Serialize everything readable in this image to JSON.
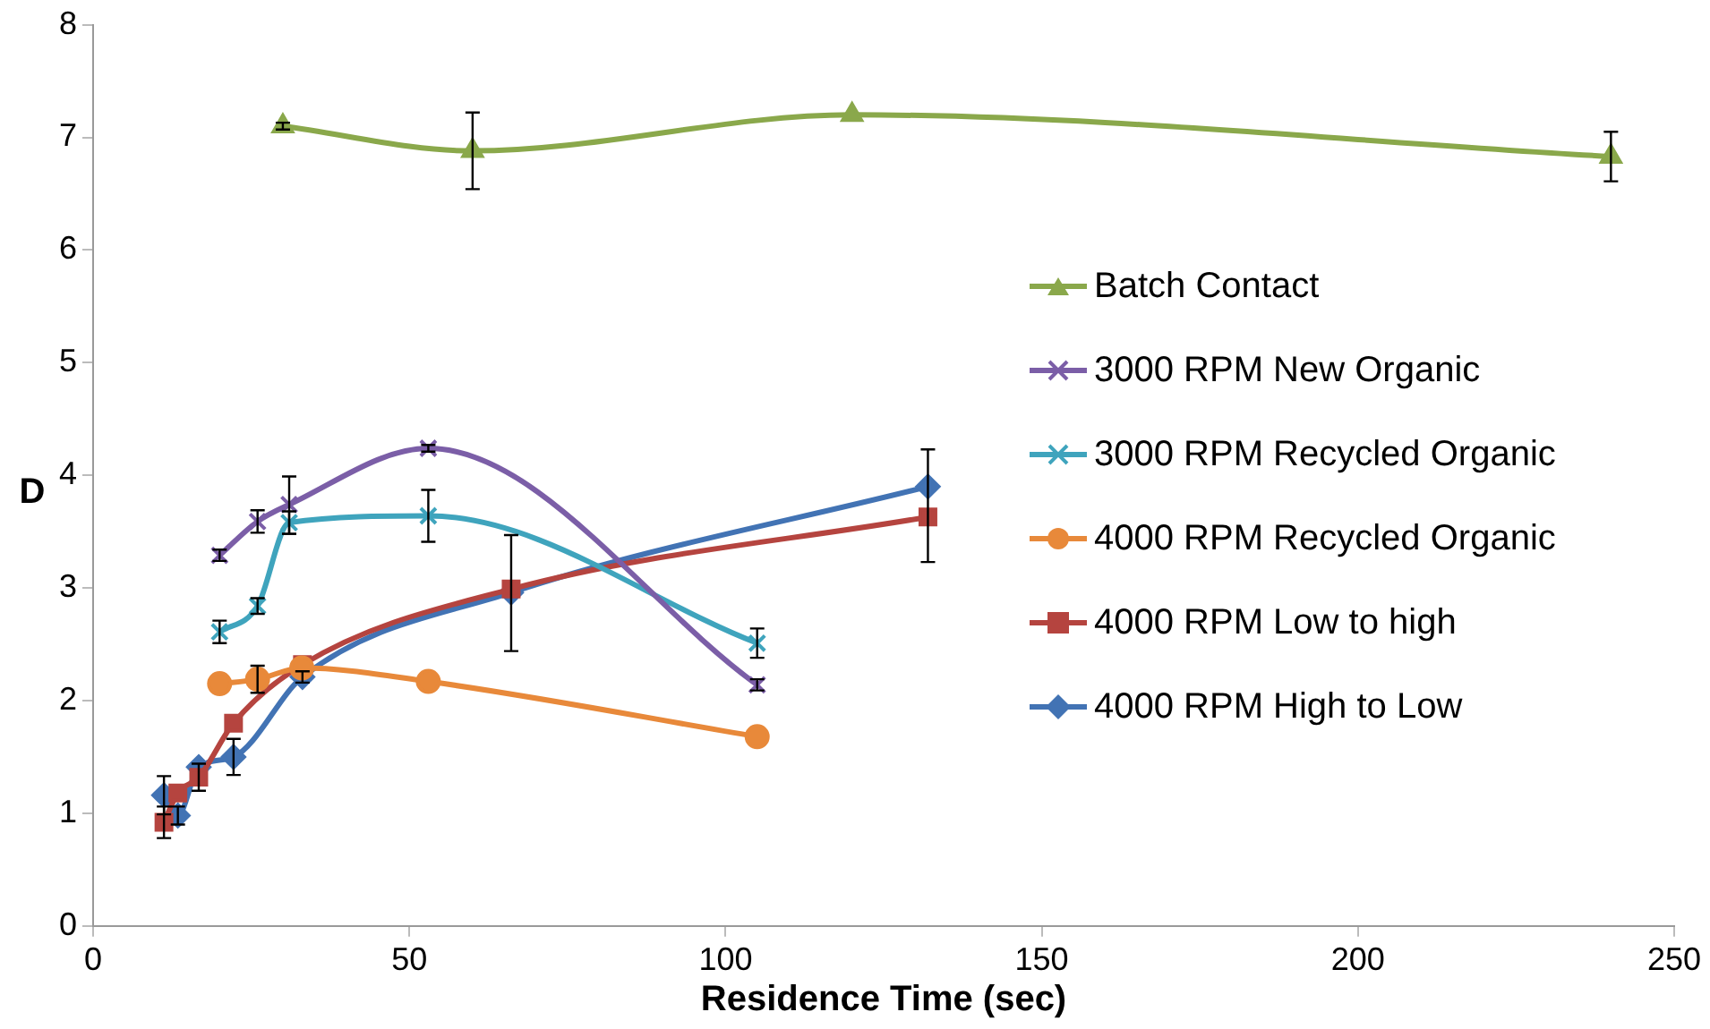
{
  "chart_data": {
    "type": "line",
    "xlabel": "Residence Time (sec)",
    "ylabel": "D",
    "xlim": [
      0,
      250
    ],
    "xticks": [
      0,
      50,
      100,
      150,
      200,
      250
    ],
    "ylim": [
      0,
      8
    ],
    "yticks": [
      0,
      1,
      2,
      3,
      4,
      5,
      6,
      7,
      8
    ],
    "grid": false,
    "legend": "right",
    "series": [
      {
        "name": "Batch Contact",
        "color": "#8aa84b",
        "marker": "triangle",
        "x": [
          30,
          60,
          120,
          240
        ],
        "values": [
          7.1,
          6.88,
          7.2,
          6.83
        ],
        "errors": [
          0.03,
          0.34,
          null,
          0.22
        ]
      },
      {
        "name": "3000 RPM New Organic",
        "color": "#7b5ea7",
        "marker": "cross",
        "x": [
          20,
          26,
          31,
          53,
          105
        ],
        "values": [
          3.29,
          3.59,
          3.74,
          4.24,
          2.14
        ],
        "errors": [
          0.05,
          0.1,
          [
            3.48,
            3.99
          ],
          0.03,
          0.05
        ]
      },
      {
        "name": "3000 RPM Recycled Organic",
        "color": "#3fa4bd",
        "marker": "cross",
        "x": [
          20,
          26,
          31,
          53,
          105
        ],
        "values": [
          2.61,
          2.84,
          3.58,
          3.64,
          2.51
        ],
        "errors": [
          0.1,
          0.07,
          0.1,
          [
            3.41,
            3.87
          ],
          0.13
        ]
      },
      {
        "name": "4000 RPM Recycled Organic",
        "color": "#e8893a",
        "marker": "circle",
        "x": [
          20,
          26,
          33,
          53,
          105
        ],
        "values": [
          2.15,
          2.19,
          2.29,
          2.17,
          1.68
        ],
        "errors": [
          null,
          0.12,
          null,
          null,
          null
        ]
      },
      {
        "name": "4000 RPM Low to high",
        "color": "#b5443f",
        "marker": "square",
        "x": [
          11.2,
          13.4,
          16.7,
          22.2,
          33.1,
          66.1,
          132
        ],
        "values": [
          0.92,
          1.18,
          1.32,
          1.8,
          2.32,
          2.99,
          3.63
        ],
        "errors": [
          0.14,
          null,
          0.12,
          null,
          null,
          [
            2.44,
            3.47
          ],
          [
            3.23,
            4.23
          ]
        ]
      },
      {
        "name": "4000 RPM High to Low",
        "color": "#4273b4",
        "marker": "diamond",
        "x": [
          11.2,
          13.4,
          16.7,
          22.2,
          33.1,
          66.1,
          132
        ],
        "values": [
          1.16,
          0.98,
          1.41,
          1.5,
          2.21,
          2.96,
          3.9
        ],
        "errors": [
          0.17,
          0.08,
          null,
          0.16,
          0.05,
          null,
          null
        ]
      }
    ]
  }
}
